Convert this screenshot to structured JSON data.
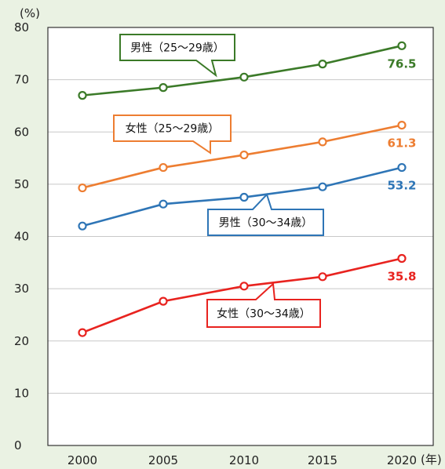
{
  "chart_data": {
    "type": "line",
    "y_unit": "(%)",
    "x_unit": "(年)",
    "categories": [
      "2000",
      "2005",
      "2010",
      "2015",
      "2020"
    ],
    "ylim": [
      0,
      80
    ],
    "yticks": [
      "0",
      "10",
      "20",
      "30",
      "40",
      "50",
      "60",
      "70",
      "80"
    ],
    "grid": true,
    "series": [
      {
        "name": "男性（25〜29歳）",
        "color": "#3b7a28",
        "values": [
          67.0,
          68.5,
          70.5,
          73.0,
          76.5
        ],
        "end_label": "76.5"
      },
      {
        "name": "女性（25〜29歳）",
        "color": "#ed7d31",
        "values": [
          49.3,
          53.2,
          55.6,
          58.1,
          61.3
        ],
        "end_label": "61.3"
      },
      {
        "name": "男性（30〜34歳）",
        "color": "#2e75b6",
        "values": [
          42.0,
          46.2,
          47.5,
          49.5,
          53.2
        ],
        "end_label": "53.2"
      },
      {
        "name": "女性（30〜34歳）",
        "color": "#e8231f",
        "values": [
          21.6,
          27.6,
          30.5,
          32.3,
          35.8
        ],
        "end_label": "35.8"
      }
    ]
  }
}
